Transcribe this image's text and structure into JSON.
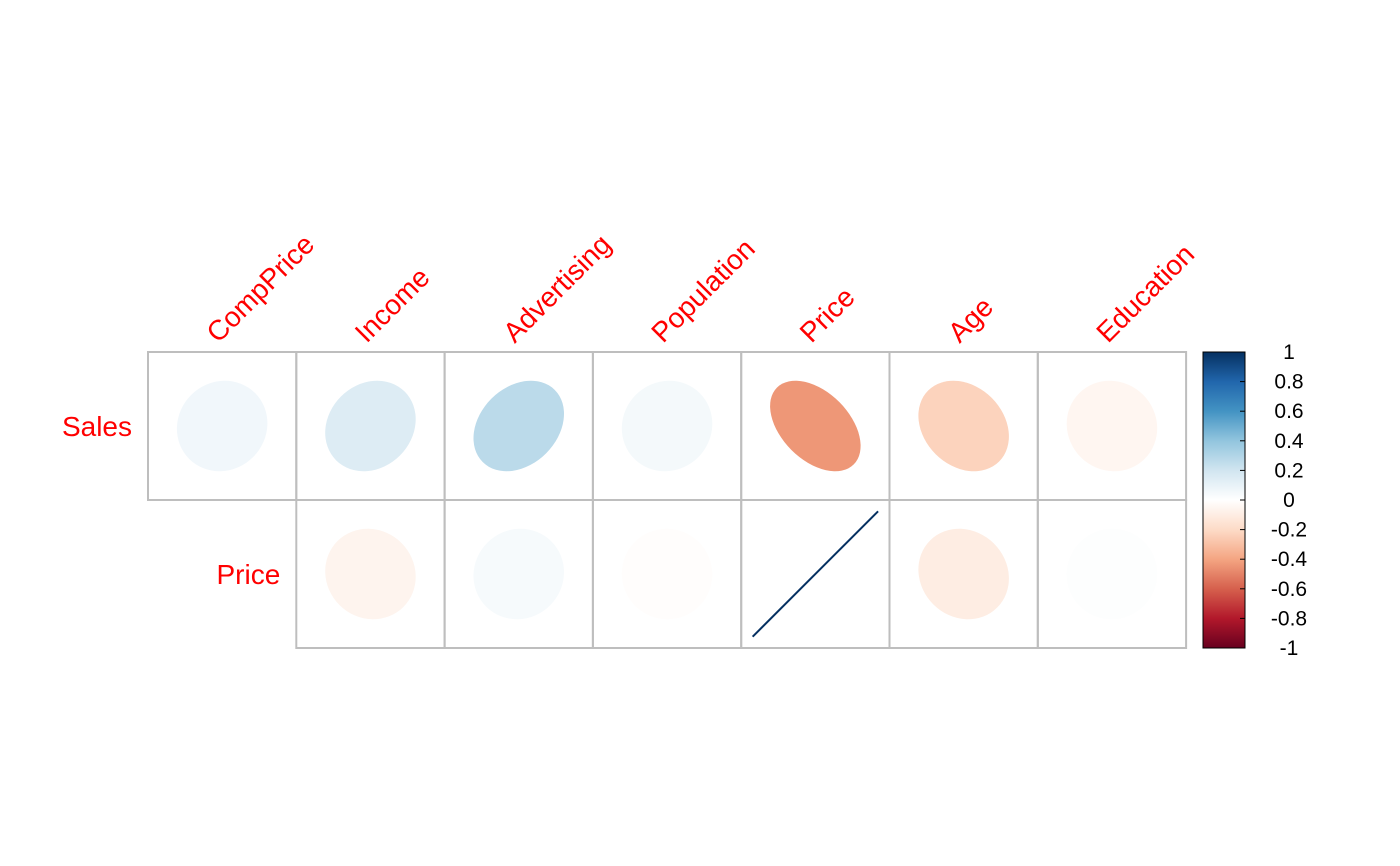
{
  "chart_data": {
    "type": "heatmap",
    "title": "",
    "columns": [
      "CompPrice",
      "Income",
      "Advertising",
      "Population",
      "Price",
      "Age",
      "Education"
    ],
    "rows": [
      {
        "name": "Sales",
        "values": [
          0.06,
          0.15,
          0.27,
          0.05,
          -0.44,
          -0.23,
          -0.05
        ]
      },
      {
        "name": "Price",
        "values": [
          null,
          -0.06,
          0.04,
          -0.01,
          1.0,
          -0.1,
          0.01
        ]
      }
    ],
    "colorbar": {
      "ticks": [
        "1",
        "0.8",
        "0.6",
        "0.4",
        "0.2",
        "0",
        "-0.2",
        "-0.4",
        "-0.6",
        "-0.8",
        "-1"
      ],
      "range": [
        -1,
        1
      ]
    },
    "label_color": "#ff0000",
    "grid_color": "#bebebe",
    "palette": [
      "#67001f",
      "#b2182b",
      "#d6604d",
      "#f4a582",
      "#fddbc7",
      "#ffffff",
      "#d1e5f0",
      "#92c5de",
      "#4393c3",
      "#2166ac",
      "#053061"
    ]
  }
}
